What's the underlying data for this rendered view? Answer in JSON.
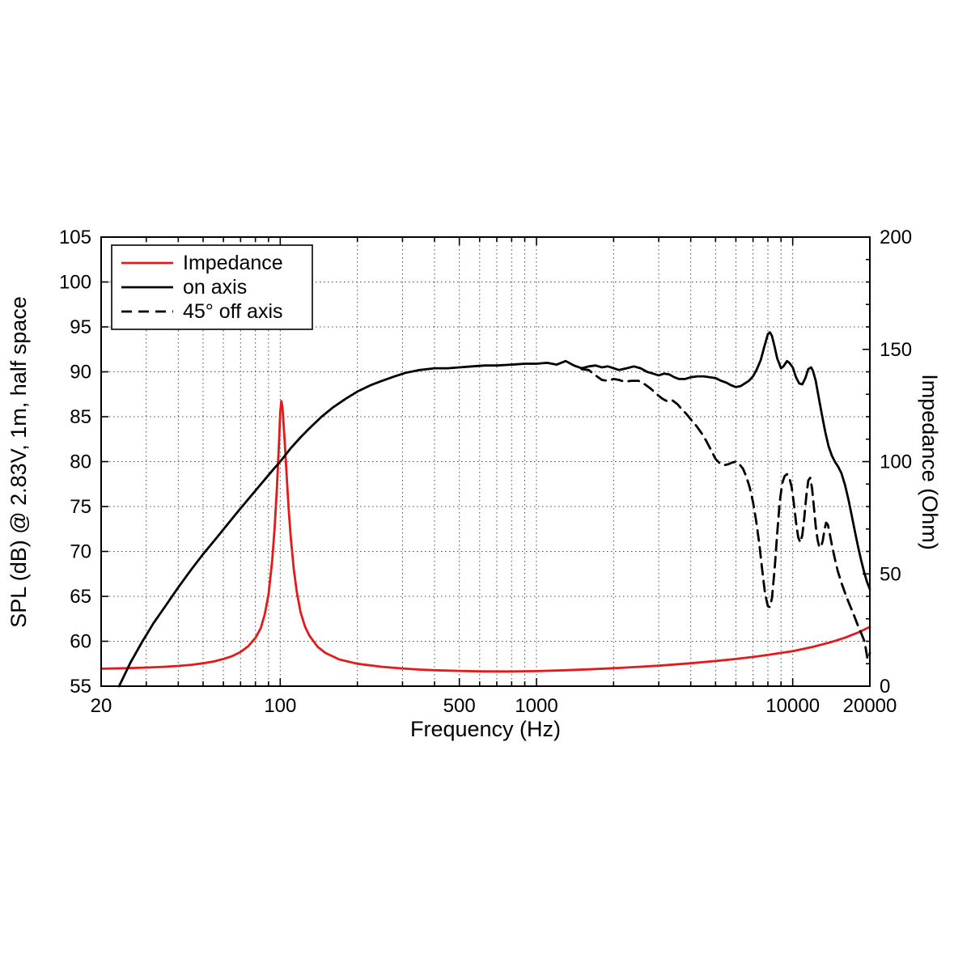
{
  "chart_data": {
    "type": "line",
    "title": "",
    "xlabel": "Frequency (Hz)",
    "ylabel_left": "SPL (dB) @ 2.83V, 1m, half space",
    "ylabel_right": "Impedance (Ohm)",
    "x_scale": "log",
    "x_range": [
      20,
      20000
    ],
    "y_left_range": [
      55,
      105
    ],
    "y_right_range": [
      0,
      200
    ],
    "grid": "dotted",
    "legend_position": "top-left",
    "x_tick_labels": [
      {
        "value": 20,
        "label": "20"
      },
      {
        "value": 100,
        "label": "100"
      },
      {
        "value": 500,
        "label": "500"
      },
      {
        "value": 1000,
        "label": "1000"
      },
      {
        "value": 10000,
        "label": "10000"
      },
      {
        "value": 20000,
        "label": "20000"
      }
    ],
    "y_left_ticks": [
      55,
      60,
      65,
      70,
      75,
      80,
      85,
      90,
      95,
      100,
      105
    ],
    "y_right_ticks": [
      0,
      50,
      100,
      150,
      200
    ],
    "series": [
      {
        "id": "impedance",
        "name": "Impedance",
        "axis": "right",
        "unit": "Ohm",
        "color": "#e41a1a",
        "style": "solid",
        "points": [
          [
            20,
            7.8
          ],
          [
            25,
            8.0
          ],
          [
            30,
            8.3
          ],
          [
            35,
            8.6
          ],
          [
            40,
            9.0
          ],
          [
            45,
            9.5
          ],
          [
            50,
            10.2
          ],
          [
            55,
            11.0
          ],
          [
            60,
            12.1
          ],
          [
            65,
            13.4
          ],
          [
            70,
            15.2
          ],
          [
            75,
            17.8
          ],
          [
            80,
            21.5
          ],
          [
            84,
            26
          ],
          [
            87,
            32
          ],
          [
            90,
            41
          ],
          [
            93,
            56
          ],
          [
            95,
            70
          ],
          [
            97,
            88
          ],
          [
            99,
            110
          ],
          [
            100,
            122
          ],
          [
            101,
            127
          ],
          [
            102,
            124
          ],
          [
            104,
            110
          ],
          [
            106,
            93
          ],
          [
            108,
            78
          ],
          [
            110,
            66
          ],
          [
            113,
            52
          ],
          [
            116,
            42
          ],
          [
            120,
            33
          ],
          [
            125,
            26.5
          ],
          [
            130,
            22.5
          ],
          [
            140,
            17.5
          ],
          [
            150,
            14.8
          ],
          [
            170,
            11.9
          ],
          [
            200,
            10.0
          ],
          [
            250,
            8.6
          ],
          [
            300,
            7.9
          ],
          [
            350,
            7.4
          ],
          [
            400,
            7.1
          ],
          [
            500,
            6.8
          ],
          [
            600,
            6.6
          ],
          [
            700,
            6.55
          ],
          [
            800,
            6.55
          ],
          [
            1000,
            6.7
          ],
          [
            1300,
            7.1
          ],
          [
            1600,
            7.5
          ],
          [
            2000,
            8.0
          ],
          [
            2500,
            8.6
          ],
          [
            3000,
            9.1
          ],
          [
            4000,
            10.2
          ],
          [
            5000,
            11.2
          ],
          [
            6000,
            12.1
          ],
          [
            7000,
            13.0
          ],
          [
            8000,
            13.9
          ],
          [
            9000,
            14.8
          ],
          [
            10000,
            15.6
          ],
          [
            12000,
            17.5
          ],
          [
            14000,
            19.5
          ],
          [
            16000,
            21.6
          ],
          [
            18000,
            23.9
          ],
          [
            20000,
            26.4
          ]
        ]
      },
      {
        "id": "on-axis",
        "name": "on axis",
        "axis": "left",
        "unit": "dB",
        "color": "#000000",
        "style": "solid",
        "points": [
          [
            23.5,
            55.0
          ],
          [
            26,
            57.6
          ],
          [
            29,
            60.0
          ],
          [
            32,
            62.0
          ],
          [
            36,
            64.1
          ],
          [
            40,
            66.0
          ],
          [
            45,
            68.0
          ],
          [
            50,
            69.7
          ],
          [
            56,
            71.4
          ],
          [
            63,
            73.2
          ],
          [
            70,
            74.8
          ],
          [
            78,
            76.4
          ],
          [
            87,
            78.0
          ],
          [
            95,
            79.3
          ],
          [
            100,
            80.0
          ],
          [
            110,
            81.5
          ],
          [
            120,
            82.7
          ],
          [
            130,
            83.7
          ],
          [
            145,
            85.0
          ],
          [
            160,
            86.0
          ],
          [
            180,
            87.0
          ],
          [
            200,
            87.8
          ],
          [
            225,
            88.5
          ],
          [
            250,
            89.0
          ],
          [
            280,
            89.5
          ],
          [
            310,
            89.9
          ],
          [
            350,
            90.2
          ],
          [
            400,
            90.4
          ],
          [
            450,
            90.4
          ],
          [
            500,
            90.5
          ],
          [
            560,
            90.6
          ],
          [
            630,
            90.7
          ],
          [
            700,
            90.7
          ],
          [
            800,
            90.8
          ],
          [
            900,
            90.9
          ],
          [
            1000,
            90.9
          ],
          [
            1100,
            91.0
          ],
          [
            1200,
            90.8
          ],
          [
            1300,
            91.2
          ],
          [
            1400,
            90.7
          ],
          [
            1500,
            90.4
          ],
          [
            1600,
            90.6
          ],
          [
            1700,
            90.7
          ],
          [
            1800,
            90.5
          ],
          [
            1900,
            90.6
          ],
          [
            2000,
            90.4
          ],
          [
            2100,
            90.2
          ],
          [
            2250,
            90.4
          ],
          [
            2400,
            90.6
          ],
          [
            2550,
            90.4
          ],
          [
            2700,
            90.0
          ],
          [
            2850,
            89.8
          ],
          [
            3000,
            89.6
          ],
          [
            3150,
            89.8
          ],
          [
            3300,
            89.7
          ],
          [
            3450,
            89.4
          ],
          [
            3600,
            89.2
          ],
          [
            3800,
            89.2
          ],
          [
            4000,
            89.4
          ],
          [
            4250,
            89.5
          ],
          [
            4500,
            89.5
          ],
          [
            4750,
            89.4
          ],
          [
            5000,
            89.3
          ],
          [
            5250,
            89.0
          ],
          [
            5500,
            88.8
          ],
          [
            5750,
            88.5
          ],
          [
            6000,
            88.3
          ],
          [
            6250,
            88.4
          ],
          [
            6500,
            88.7
          ],
          [
            6750,
            89.0
          ],
          [
            7000,
            89.5
          ],
          [
            7250,
            90.3
          ],
          [
            7500,
            91.3
          ],
          [
            7750,
            92.8
          ],
          [
            8000,
            94.2
          ],
          [
            8150,
            94.4
          ],
          [
            8300,
            94.0
          ],
          [
            8500,
            92.8
          ],
          [
            8700,
            91.5
          ],
          [
            9000,
            90.4
          ],
          [
            9200,
            90.6
          ],
          [
            9500,
            91.2
          ],
          [
            9700,
            91.0
          ],
          [
            10000,
            90.5
          ],
          [
            10300,
            89.4
          ],
          [
            10600,
            88.7
          ],
          [
            10900,
            88.6
          ],
          [
            11200,
            89.3
          ],
          [
            11500,
            90.3
          ],
          [
            11800,
            90.5
          ],
          [
            12000,
            90.1
          ],
          [
            12300,
            89.0
          ],
          [
            12600,
            87.3
          ],
          [
            13000,
            85.2
          ],
          [
            13400,
            83.3
          ],
          [
            13800,
            81.7
          ],
          [
            14200,
            80.7
          ],
          [
            14600,
            80.0
          ],
          [
            15000,
            79.5
          ],
          [
            15500,
            78.7
          ],
          [
            16000,
            77.4
          ],
          [
            16500,
            75.8
          ],
          [
            17000,
            74.0
          ],
          [
            17500,
            72.2
          ],
          [
            18000,
            70.5
          ],
          [
            18500,
            69.0
          ],
          [
            19000,
            67.7
          ],
          [
            19500,
            66.6
          ],
          [
            20000,
            65.8
          ]
        ]
      },
      {
        "id": "off-axis-45",
        "name": "45° off axis",
        "axis": "left",
        "unit": "dB",
        "color": "#000000",
        "style": "dashed",
        "points": [
          [
            1500,
            90.3
          ],
          [
            1600,
            90.2
          ],
          [
            1700,
            89.6
          ],
          [
            1800,
            89.1
          ],
          [
            1900,
            89.0
          ],
          [
            2000,
            89.2
          ],
          [
            2100,
            89.1
          ],
          [
            2200,
            88.9
          ],
          [
            2350,
            89.0
          ],
          [
            2500,
            89.0
          ],
          [
            2650,
            88.6
          ],
          [
            2800,
            88.1
          ],
          [
            2950,
            87.5
          ],
          [
            3100,
            87.0
          ],
          [
            3250,
            86.7
          ],
          [
            3400,
            86.8
          ],
          [
            3550,
            86.4
          ],
          [
            3700,
            85.8
          ],
          [
            3850,
            85.3
          ],
          [
            4000,
            84.7
          ],
          [
            4200,
            84.0
          ],
          [
            4400,
            83.2
          ],
          [
            4600,
            82.3
          ],
          [
            4800,
            81.3
          ],
          [
            5000,
            80.3
          ],
          [
            5200,
            79.8
          ],
          [
            5400,
            79.6
          ],
          [
            5600,
            79.7
          ],
          [
            5800,
            79.9
          ],
          [
            6000,
            80.0
          ],
          [
            6200,
            79.7
          ],
          [
            6400,
            79.2
          ],
          [
            6600,
            78.3
          ],
          [
            6800,
            77.1
          ],
          [
            7000,
            75.5
          ],
          [
            7200,
            73.4
          ],
          [
            7400,
            70.9
          ],
          [
            7600,
            68.0
          ],
          [
            7800,
            65.3
          ],
          [
            8000,
            63.9
          ],
          [
            8150,
            63.8
          ],
          [
            8300,
            64.8
          ],
          [
            8500,
            68.0
          ],
          [
            8700,
            72.0
          ],
          [
            8900,
            75.5
          ],
          [
            9100,
            77.6
          ],
          [
            9300,
            78.4
          ],
          [
            9500,
            78.6
          ],
          [
            9700,
            78.2
          ],
          [
            9900,
            77.2
          ],
          [
            10100,
            75.4
          ],
          [
            10300,
            73.3
          ],
          [
            10500,
            71.6
          ],
          [
            10700,
            71.0
          ],
          [
            10900,
            71.8
          ],
          [
            11100,
            73.8
          ],
          [
            11300,
            76.2
          ],
          [
            11500,
            77.9
          ],
          [
            11700,
            78.2
          ],
          [
            11900,
            77.0
          ],
          [
            12100,
            74.9
          ],
          [
            12300,
            72.8
          ],
          [
            12500,
            71.3
          ],
          [
            12700,
            70.5
          ],
          [
            12900,
            70.5
          ],
          [
            13100,
            71.2
          ],
          [
            13300,
            72.4
          ],
          [
            13500,
            73.2
          ],
          [
            13700,
            73.0
          ],
          [
            13900,
            72.2
          ],
          [
            14200,
            70.8
          ],
          [
            14600,
            69.2
          ],
          [
            15000,
            67.8
          ],
          [
            15500,
            66.5
          ],
          [
            16000,
            65.4
          ],
          [
            16500,
            64.4
          ],
          [
            17000,
            63.5
          ],
          [
            17500,
            62.6
          ],
          [
            18000,
            61.7
          ],
          [
            18500,
            60.9
          ],
          [
            19000,
            60.1
          ],
          [
            19200,
            59.5
          ],
          [
            19400,
            58.7
          ],
          [
            19600,
            58.0
          ],
          [
            19800,
            58.1
          ],
          [
            20000,
            58.7
          ]
        ]
      }
    ]
  }
}
